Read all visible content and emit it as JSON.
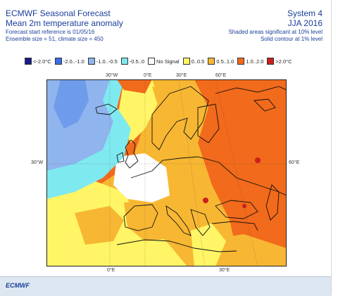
{
  "header": {
    "title_left_1": "ECMWF Seasonal Forecast",
    "title_left_2": "Mean 2m temperature anomaly",
    "sub_left_1": "Forecast start reference is 01/05/16",
    "sub_left_2": "Ensemble size = 51, climate size = 450",
    "title_right_1": "System 4",
    "title_right_2": "JJA 2016",
    "sub_right_1": "Shaded areas significant at 10% level",
    "sub_right_2": "Solid contour at 1% level"
  },
  "legend": [
    {
      "label": "<-2.0°C",
      "color": "#1a1a8c"
    },
    {
      "label": "-2.0..-1.0",
      "color": "#3a6de8"
    },
    {
      "label": "-1.0..-0.5",
      "color": "#8fb4ee"
    },
    {
      "label": "-0.5..0",
      "color": "#7fe9f0"
    },
    {
      "label": "No Signal",
      "color": "#ffffff"
    },
    {
      "label": "0..0.5",
      "color": "#fff566"
    },
    {
      "label": "0.5..1.0",
      "color": "#f7b733"
    },
    {
      "label": "1.0..2.0",
      "color": "#f26a1b"
    },
    {
      "label": ">2.0°C",
      "color": "#cc1f1f"
    }
  ],
  "grid_labels": {
    "top_30w": "30°W",
    "top_0e": "0°E",
    "top_30e": "30°E",
    "top_60e": "60°E",
    "left_30w": "30°W",
    "right_60e": "60°E",
    "bottom_0e": "0°E",
    "bottom_30e": "30°E"
  },
  "footer": {
    "brand": "ECMWF"
  }
}
